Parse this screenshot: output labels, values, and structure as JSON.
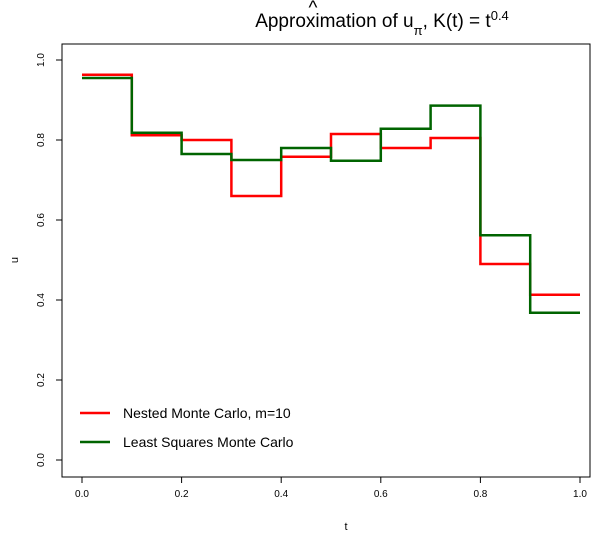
{
  "chart_data": {
    "type": "line",
    "title": {
      "prefix": "Approximation of ",
      "hat": "^",
      "symbol": "u",
      "subscript": "π",
      "middle": ", K(t) = t",
      "superscript": "0.4"
    },
    "xlabel": "t",
    "ylabel": "u",
    "xlim": [
      0,
      1
    ],
    "ylim": [
      0,
      1
    ],
    "x_ticks": [
      0,
      0.2,
      0.4,
      0.6,
      0.8,
      1
    ],
    "x_tick_labels": [
      "0.0",
      "0.2",
      "0.4",
      "0.6",
      "0.8",
      "1.0"
    ],
    "y_ticks": [
      0,
      0.2,
      0.4,
      0.6,
      0.8,
      1
    ],
    "y_tick_labels": [
      "0.0",
      "0.2",
      "0.4",
      "0.6",
      "0.8",
      "1.0"
    ],
    "grid": false,
    "legend_position": "bottom-left",
    "step_edges": [
      0,
      0.1,
      0.2,
      0.3,
      0.4,
      0.5,
      0.6,
      0.7,
      0.8,
      0.9,
      1.0
    ],
    "series": [
      {
        "name": "Nested Monte Carlo, m=10",
        "color": "#ff0000",
        "values": [
          0.963,
          0.812,
          0.8,
          0.66,
          0.758,
          0.815,
          0.78,
          0.805,
          0.49,
          0.413
        ]
      },
      {
        "name": "Least Squares Monte Carlo",
        "color": "#006400",
        "values": [
          0.955,
          0.818,
          0.765,
          0.75,
          0.78,
          0.748,
          0.828,
          0.886,
          0.562,
          0.368
        ]
      }
    ]
  }
}
